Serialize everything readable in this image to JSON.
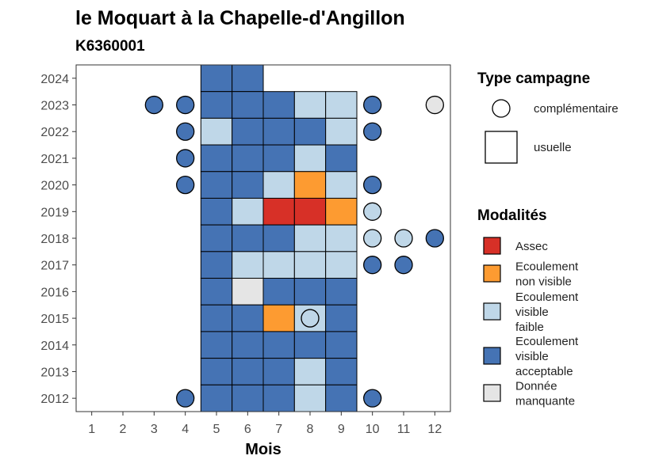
{
  "chart_data": {
    "type": "heatmap",
    "title": "le Moquart à la Chapelle-d'Angillon",
    "subtitle": "K6360001",
    "xlabel": "Mois",
    "ylabel": "",
    "x_ticks": [
      "1",
      "2",
      "3",
      "4",
      "5",
      "6",
      "7",
      "8",
      "9",
      "10",
      "11",
      "12"
    ],
    "y_ticks": [
      "2012",
      "2013",
      "2014",
      "2015",
      "2016",
      "2017",
      "2018",
      "2019",
      "2020",
      "2021",
      "2022",
      "2023",
      "2024"
    ],
    "xlim": [
      0.5,
      12.5
    ],
    "ylim": [
      2011.5,
      2024.5
    ],
    "colors": {
      "Assec": "#d73027",
      "Ecoulement non visible": "#fd9b31",
      "Ecoulement visible faible": "#bfd7e8",
      "Ecoulement visible acceptable": "#4573b4",
      "Donnée manquante": "#e5e5e5"
    },
    "usuelle": [
      {
        "year": 2024,
        "month": 5,
        "m": "Ecoulement visible acceptable"
      },
      {
        "year": 2024,
        "month": 6,
        "m": "Ecoulement visible acceptable"
      },
      {
        "year": 2023,
        "month": 5,
        "m": "Ecoulement visible acceptable"
      },
      {
        "year": 2023,
        "month": 6,
        "m": "Ecoulement visible acceptable"
      },
      {
        "year": 2023,
        "month": 7,
        "m": "Ecoulement visible acceptable"
      },
      {
        "year": 2023,
        "month": 8,
        "m": "Ecoulement visible faible"
      },
      {
        "year": 2023,
        "month": 9,
        "m": "Ecoulement visible faible"
      },
      {
        "year": 2022,
        "month": 5,
        "m": "Ecoulement visible faible"
      },
      {
        "year": 2022,
        "month": 6,
        "m": "Ecoulement visible acceptable"
      },
      {
        "year": 2022,
        "month": 7,
        "m": "Ecoulement visible acceptable"
      },
      {
        "year": 2022,
        "month": 8,
        "m": "Ecoulement visible acceptable"
      },
      {
        "year": 2022,
        "month": 9,
        "m": "Ecoulement visible faible"
      },
      {
        "year": 2021,
        "month": 5,
        "m": "Ecoulement visible acceptable"
      },
      {
        "year": 2021,
        "month": 6,
        "m": "Ecoulement visible acceptable"
      },
      {
        "year": 2021,
        "month": 7,
        "m": "Ecoulement visible acceptable"
      },
      {
        "year": 2021,
        "month": 8,
        "m": "Ecoulement visible faible"
      },
      {
        "year": 2021,
        "month": 9,
        "m": "Ecoulement visible acceptable"
      },
      {
        "year": 2020,
        "month": 5,
        "m": "Ecoulement visible acceptable"
      },
      {
        "year": 2020,
        "month": 6,
        "m": "Ecoulement visible acceptable"
      },
      {
        "year": 2020,
        "month": 7,
        "m": "Ecoulement visible faible"
      },
      {
        "year": 2020,
        "month": 8,
        "m": "Ecoulement non visible"
      },
      {
        "year": 2020,
        "month": 9,
        "m": "Ecoulement visible faible"
      },
      {
        "year": 2019,
        "month": 5,
        "m": "Ecoulement visible acceptable"
      },
      {
        "year": 2019,
        "month": 6,
        "m": "Ecoulement visible faible"
      },
      {
        "year": 2019,
        "month": 7,
        "m": "Assec"
      },
      {
        "year": 2019,
        "month": 8,
        "m": "Assec"
      },
      {
        "year": 2019,
        "month": 9,
        "m": "Ecoulement non visible"
      },
      {
        "year": 2018,
        "month": 5,
        "m": "Ecoulement visible acceptable"
      },
      {
        "year": 2018,
        "month": 6,
        "m": "Ecoulement visible acceptable"
      },
      {
        "year": 2018,
        "month": 7,
        "m": "Ecoulement visible acceptable"
      },
      {
        "year": 2018,
        "month": 8,
        "m": "Ecoulement visible faible"
      },
      {
        "year": 2018,
        "month": 9,
        "m": "Ecoulement visible faible"
      },
      {
        "year": 2017,
        "month": 5,
        "m": "Ecoulement visible acceptable"
      },
      {
        "year": 2017,
        "month": 6,
        "m": "Ecoulement visible faible"
      },
      {
        "year": 2017,
        "month": 7,
        "m": "Ecoulement visible faible"
      },
      {
        "year": 2017,
        "month": 8,
        "m": "Ecoulement visible faible"
      },
      {
        "year": 2017,
        "month": 9,
        "m": "Ecoulement visible faible"
      },
      {
        "year": 2016,
        "month": 5,
        "m": "Ecoulement visible acceptable"
      },
      {
        "year": 2016,
        "month": 6,
        "m": "Donnée manquante"
      },
      {
        "year": 2016,
        "month": 7,
        "m": "Ecoulement visible acceptable"
      },
      {
        "year": 2016,
        "month": 8,
        "m": "Ecoulement visible acceptable"
      },
      {
        "year": 2016,
        "month": 9,
        "m": "Ecoulement visible acceptable"
      },
      {
        "year": 2015,
        "month": 5,
        "m": "Ecoulement visible acceptable"
      },
      {
        "year": 2015,
        "month": 6,
        "m": "Ecoulement visible acceptable"
      },
      {
        "year": 2015,
        "month": 7,
        "m": "Ecoulement non visible"
      },
      {
        "year": 2015,
        "month": 8,
        "m": "Ecoulement visible faible"
      },
      {
        "year": 2015,
        "month": 9,
        "m": "Ecoulement visible acceptable"
      },
      {
        "year": 2014,
        "month": 5,
        "m": "Ecoulement visible acceptable"
      },
      {
        "year": 2014,
        "month": 6,
        "m": "Ecoulement visible acceptable"
      },
      {
        "year": 2014,
        "month": 7,
        "m": "Ecoulement visible acceptable"
      },
      {
        "year": 2014,
        "month": 8,
        "m": "Ecoulement visible acceptable"
      },
      {
        "year": 2014,
        "month": 9,
        "m": "Ecoulement visible acceptable"
      },
      {
        "year": 2013,
        "month": 5,
        "m": "Ecoulement visible acceptable"
      },
      {
        "year": 2013,
        "month": 6,
        "m": "Ecoulement visible acceptable"
      },
      {
        "year": 2013,
        "month": 7,
        "m": "Ecoulement visible acceptable"
      },
      {
        "year": 2013,
        "month": 8,
        "m": "Ecoulement visible faible"
      },
      {
        "year": 2013,
        "month": 9,
        "m": "Ecoulement visible acceptable"
      },
      {
        "year": 2012,
        "month": 5,
        "m": "Ecoulement visible acceptable"
      },
      {
        "year": 2012,
        "month": 6,
        "m": "Ecoulement visible acceptable"
      },
      {
        "year": 2012,
        "month": 7,
        "m": "Ecoulement visible acceptable"
      },
      {
        "year": 2012,
        "month": 8,
        "m": "Ecoulement visible faible"
      },
      {
        "year": 2012,
        "month": 9,
        "m": "Ecoulement visible acceptable"
      }
    ],
    "complementaire": [
      {
        "year": 2023,
        "month": 3,
        "m": "Ecoulement visible acceptable"
      },
      {
        "year": 2023,
        "month": 4,
        "m": "Ecoulement visible acceptable"
      },
      {
        "year": 2023,
        "month": 10,
        "m": "Ecoulement visible acceptable"
      },
      {
        "year": 2023,
        "month": 12,
        "m": "Donnée manquante"
      },
      {
        "year": 2022,
        "month": 4,
        "m": "Ecoulement visible acceptable"
      },
      {
        "year": 2022,
        "month": 10,
        "m": "Ecoulement visible acceptable"
      },
      {
        "year": 2021,
        "month": 4,
        "m": "Ecoulement visible acceptable"
      },
      {
        "year": 2020,
        "month": 4,
        "m": "Ecoulement visible acceptable"
      },
      {
        "year": 2020,
        "month": 10,
        "m": "Ecoulement visible acceptable"
      },
      {
        "year": 2019,
        "month": 10,
        "m": "Ecoulement visible faible"
      },
      {
        "year": 2018,
        "month": 10,
        "m": "Ecoulement visible faible"
      },
      {
        "year": 2018,
        "month": 11,
        "m": "Ecoulement visible faible"
      },
      {
        "year": 2018,
        "month": 12,
        "m": "Ecoulement visible acceptable"
      },
      {
        "year": 2017,
        "month": 10,
        "m": "Ecoulement visible acceptable"
      },
      {
        "year": 2017,
        "month": 11,
        "m": "Ecoulement visible acceptable"
      },
      {
        "year": 2015,
        "month": 8,
        "m": "Ecoulement visible faible"
      },
      {
        "year": 2012,
        "month": 4,
        "m": "Ecoulement visible acceptable"
      },
      {
        "year": 2012,
        "month": 10,
        "m": "Ecoulement visible acceptable"
      }
    ],
    "legend": {
      "type_title": "Type campagne",
      "type_items": [
        {
          "label": "complémentaire",
          "shape": "circle"
        },
        {
          "label": "usuelle",
          "shape": "square"
        }
      ],
      "mod_title": "Modalités",
      "mod_items": [
        {
          "lines": [
            "Assec"
          ],
          "key": "Assec"
        },
        {
          "lines": [
            "Ecoulement",
            "non visible"
          ],
          "key": "Ecoulement non visible"
        },
        {
          "lines": [
            "Ecoulement",
            "visible",
            "faible"
          ],
          "key": "Ecoulement visible faible"
        },
        {
          "lines": [
            "Ecoulement",
            "visible",
            "acceptable"
          ],
          "key": "Ecoulement visible acceptable"
        },
        {
          "lines": [
            "Donnée",
            "manquante"
          ],
          "key": "Donnée manquante"
        }
      ]
    }
  }
}
